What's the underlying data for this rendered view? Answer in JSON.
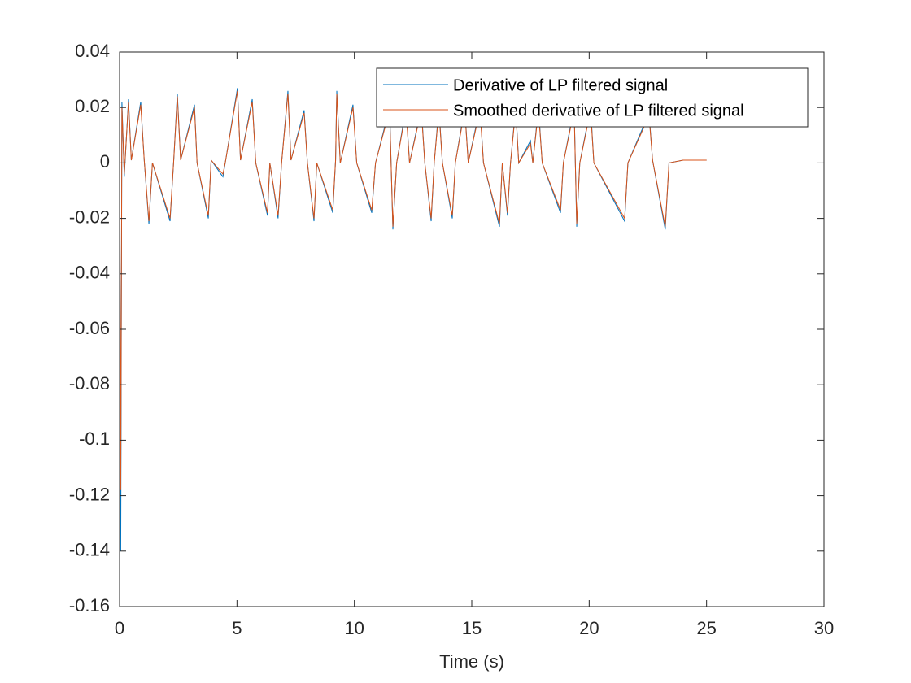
{
  "chart_data": {
    "type": "line",
    "xlabel": "Time (s)",
    "xlim": [
      0,
      30
    ],
    "xticks": [
      0,
      5,
      10,
      15,
      20,
      25,
      30
    ],
    "ylim": [
      -0.16,
      0.04
    ],
    "yticks": [
      -0.16,
      -0.14,
      -0.12,
      -0.1,
      -0.08,
      -0.06,
      -0.04,
      -0.02,
      0,
      0.02,
      0.04
    ],
    "grid": false,
    "legend": "northeast",
    "x": [
      0,
      0.05,
      0.1,
      0.2,
      0.38,
      0.5,
      0.9,
      1.05,
      1.25,
      1.4,
      2.15,
      2.3,
      2.46,
      2.6,
      3.19,
      3.3,
      3.78,
      3.9,
      4.4,
      4.5,
      5.02,
      5.15,
      5.65,
      5.8,
      6.3,
      6.4,
      6.75,
      6.9,
      7.17,
      7.3,
      7.86,
      8.0,
      8.28,
      8.4,
      9.08,
      9.2,
      9.25,
      9.4,
      9.94,
      10.1,
      10.74,
      10.9,
      11.5,
      11.64,
      11.8,
      12.2,
      12.35,
      12.85,
      13.0,
      13.27,
      13.4,
      13.6,
      13.75,
      14.17,
      14.3,
      14.7,
      14.85,
      15.35,
      15.5,
      16.18,
      16.3,
      16.52,
      16.65,
      16.87,
      17.0,
      17.5,
      17.6,
      17.84,
      18.0,
      18.78,
      18.9,
      19.36,
      19.47,
      19.6,
      20.06,
      20.2,
      21.51,
      21.65,
      22.55,
      22.7,
      23.24,
      23.4,
      24,
      25
    ],
    "series": [
      {
        "name": "Derivative of LP filtered signal",
        "color": "#0072BD",
        "values": [
          0.02,
          -0.14,
          0.022,
          -0.005,
          0.023,
          0.001,
          0.022,
          0.001,
          -0.022,
          0,
          -0.021,
          0,
          0.025,
          0.001,
          0.021,
          0,
          -0.02,
          0.001,
          -0.005,
          0,
          0.027,
          0.001,
          0.023,
          0,
          -0.019,
          0,
          -0.02,
          0,
          0.026,
          0.001,
          0.019,
          0,
          -0.021,
          0,
          -0.018,
          0.001,
          0.026,
          0,
          0.021,
          0,
          -0.018,
          0,
          0.02,
          -0.024,
          0,
          0.02,
          0,
          0.02,
          0,
          -0.021,
          0,
          0.02,
          0,
          -0.02,
          0,
          0.02,
          0,
          0.02,
          0,
          -0.023,
          0,
          -0.019,
          0,
          0.02,
          0,
          0.008,
          0,
          0.02,
          0,
          -0.018,
          0,
          0.02,
          -0.023,
          0,
          0.02,
          0,
          -0.021,
          0,
          0.018,
          0.001,
          -0.024,
          0,
          0.001,
          0.001
        ]
      },
      {
        "name": "Smoothed derivative of LP filtered signal",
        "color": "#D95319",
        "values": [
          0.018,
          -0.118,
          0.02,
          -0.004,
          0.022,
          0.001,
          0.021,
          0.001,
          -0.021,
          0,
          -0.02,
          0,
          0.024,
          0.001,
          0.02,
          0,
          -0.019,
          0.001,
          -0.004,
          0,
          0.026,
          0.001,
          0.022,
          0,
          -0.018,
          0,
          -0.019,
          0,
          0.025,
          0.001,
          0.018,
          0,
          -0.02,
          0,
          -0.017,
          0.001,
          0.025,
          0,
          0.02,
          0,
          -0.017,
          0,
          0.019,
          -0.023,
          0,
          0.019,
          0,
          0.019,
          0,
          -0.02,
          0,
          0.019,
          0,
          -0.019,
          0,
          0.019,
          0,
          0.019,
          0,
          -0.022,
          0,
          -0.018,
          0,
          0.019,
          0,
          0.007,
          0,
          0.019,
          0,
          -0.017,
          0,
          0.019,
          -0.022,
          0,
          0.019,
          0,
          -0.02,
          0,
          0.017,
          0.001,
          -0.023,
          0,
          0.001,
          0.001
        ]
      }
    ]
  }
}
